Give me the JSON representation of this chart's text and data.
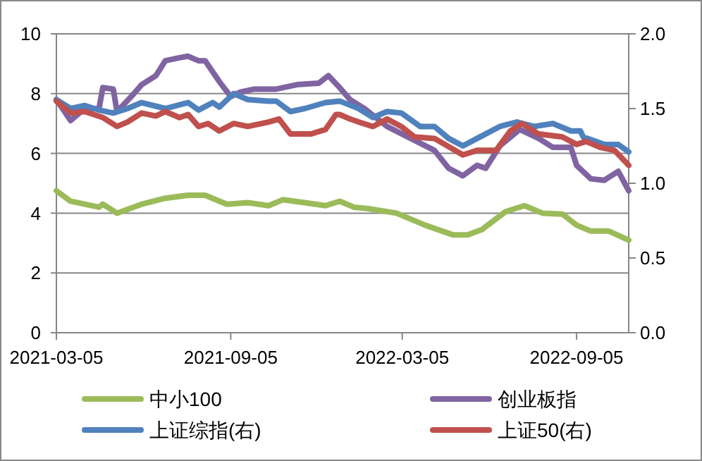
{
  "chart_data": {
    "type": "line",
    "xlim": [
      "2021-03-05",
      "2022-10-30"
    ],
    "xticks": [
      "2021-03-05",
      "2021-09-05",
      "2022-03-05",
      "2022-09-05"
    ],
    "ylim": [
      0,
      10
    ],
    "yticks": [
      0,
      2,
      4,
      6,
      8,
      10
    ],
    "y2lim": [
      0,
      2
    ],
    "y2ticks": [
      {
        "value": 0,
        "label": "0.0"
      },
      {
        "value": 0.5,
        "label": "0.5"
      },
      {
        "value": 1,
        "label": "1.0"
      },
      {
        "value": 1.5,
        "label": "1.5"
      },
      {
        "value": 2,
        "label": "2.0"
      }
    ],
    "grid": "y",
    "legend": "bottom",
    "marker": "none",
    "line_style": "solid",
    "series": [
      {
        "name": "中小100",
        "color": "#9bbb59",
        "x": [
          "2021-03-05",
          "2021-03-20",
          "2021-04-04",
          "2021-04-19",
          "2021-04-23",
          "2021-05-08",
          "2021-06-03",
          "2021-06-28",
          "2021-07-22",
          "2021-08-09",
          "2021-09-01",
          "2021-09-23",
          "2021-10-15",
          "2021-10-30",
          "2021-11-22",
          "2021-12-14",
          "2021-12-29",
          "2022-01-13",
          "2022-01-28",
          "2022-02-27",
          "2022-03-29",
          "2022-04-28",
          "2022-05-13",
          "2022-05-28",
          "2022-06-22",
          "2022-07-12",
          "2022-07-31",
          "2022-08-21",
          "2022-09-05",
          "2022-09-20",
          "2022-10-09",
          "2022-10-30"
        ],
        "values": [
          4.75,
          4.4,
          4.3,
          4.2,
          4.3,
          4.0,
          4.3,
          4.5,
          4.6,
          4.6,
          4.3,
          4.35,
          4.25,
          4.45,
          4.35,
          4.25,
          4.4,
          4.2,
          4.15,
          4.0,
          3.6,
          3.27,
          3.27,
          3.45,
          4.05,
          4.25,
          4.0,
          3.97,
          3.6,
          3.4,
          3.4,
          3.1
        ]
      },
      {
        "name": "创业板指",
        "color": "#8064a2",
        "x": [
          "2021-03-05",
          "2021-03-20",
          "2021-04-04",
          "2021-04-19",
          "2021-04-23",
          "2021-05-04",
          "2021-05-08",
          "2021-05-23",
          "2021-06-03",
          "2021-06-18",
          "2021-06-28",
          "2021-07-13",
          "2021-07-22",
          "2021-08-02",
          "2021-08-09",
          "2021-08-24",
          "2021-09-05",
          "2021-09-15",
          "2021-09-30",
          "2021-10-23",
          "2021-11-14",
          "2021-12-07",
          "2021-12-17",
          "2021-12-29",
          "2022-01-09",
          "2022-01-24",
          "2022-02-17",
          "2022-03-14",
          "2022-04-08",
          "2022-04-23",
          "2022-05-08",
          "2022-05-23",
          "2022-06-01",
          "2022-06-16",
          "2022-07-07",
          "2022-07-27",
          "2022-08-11",
          "2022-08-30",
          "2022-09-05",
          "2022-09-20",
          "2022-10-04",
          "2022-10-19",
          "2022-10-30"
        ],
        "values": [
          7.8,
          7.1,
          7.5,
          7.5,
          8.2,
          8.15,
          7.4,
          7.9,
          8.3,
          8.6,
          9.1,
          9.2,
          9.25,
          9.1,
          9.1,
          8.4,
          7.9,
          8.05,
          8.15,
          8.15,
          8.3,
          8.35,
          8.6,
          8.2,
          7.8,
          7.5,
          6.9,
          6.5,
          6.1,
          5.5,
          5.25,
          5.6,
          5.5,
          6.25,
          6.8,
          6.5,
          6.2,
          6.2,
          5.6,
          5.15,
          5.1,
          5.4,
          4.75
        ]
      },
      {
        "name": "上证综指(右)",
        "color": "#4f81bd",
        "axis": "y2",
        "x": [
          "2021-03-05",
          "2021-03-20",
          "2021-04-04",
          "2021-04-19",
          "2021-05-04",
          "2021-05-19",
          "2021-06-03",
          "2021-06-28",
          "2021-07-22",
          "2021-08-02",
          "2021-08-17",
          "2021-08-24",
          "2021-09-08",
          "2021-09-23",
          "2021-10-15",
          "2021-10-23",
          "2021-11-07",
          "2021-11-22",
          "2021-12-14",
          "2021-12-29",
          "2022-01-06",
          "2022-01-18",
          "2022-02-02",
          "2022-02-17",
          "2022-03-04",
          "2022-03-24",
          "2022-04-08",
          "2022-04-23",
          "2022-05-08",
          "2022-05-23",
          "2022-06-16",
          "2022-07-04",
          "2022-07-22",
          "2022-08-11",
          "2022-08-30",
          "2022-09-09",
          "2022-09-12",
          "2022-10-04",
          "2022-10-19",
          "2022-10-30"
        ],
        "values": [
          1.56,
          1.5,
          1.52,
          1.49,
          1.47,
          1.5,
          1.54,
          1.5,
          1.54,
          1.49,
          1.54,
          1.51,
          1.6,
          1.56,
          1.55,
          1.55,
          1.48,
          1.5,
          1.54,
          1.55,
          1.53,
          1.5,
          1.44,
          1.48,
          1.47,
          1.38,
          1.38,
          1.3,
          1.25,
          1.3,
          1.38,
          1.41,
          1.38,
          1.4,
          1.35,
          1.35,
          1.31,
          1.26,
          1.26,
          1.21
        ]
      },
      {
        "name": "上证50(右)",
        "color": "#c0504d",
        "axis": "y2",
        "x": [
          "2021-03-05",
          "2021-03-20",
          "2021-04-04",
          "2021-04-23",
          "2021-05-08",
          "2021-05-19",
          "2021-06-03",
          "2021-06-18",
          "2021-06-28",
          "2021-07-13",
          "2021-07-22",
          "2021-08-02",
          "2021-08-12",
          "2021-08-24",
          "2021-09-08",
          "2021-09-23",
          "2021-10-15",
          "2021-10-26",
          "2021-11-07",
          "2021-11-29",
          "2021-12-14",
          "2021-12-25",
          "2021-12-29",
          "2022-01-09",
          "2022-01-18",
          "2022-02-02",
          "2022-02-17",
          "2022-03-04",
          "2022-03-18",
          "2022-04-08",
          "2022-05-08",
          "2022-05-23",
          "2022-06-12",
          "2022-06-27",
          "2022-07-09",
          "2022-07-27",
          "2022-08-21",
          "2022-09-05",
          "2022-09-15",
          "2022-09-30",
          "2022-10-15",
          "2022-10-30"
        ],
        "values": [
          1.55,
          1.47,
          1.48,
          1.44,
          1.38,
          1.41,
          1.47,
          1.45,
          1.48,
          1.44,
          1.46,
          1.38,
          1.4,
          1.35,
          1.4,
          1.38,
          1.41,
          1.43,
          1.33,
          1.33,
          1.36,
          1.46,
          1.46,
          1.43,
          1.41,
          1.38,
          1.43,
          1.38,
          1.31,
          1.3,
          1.19,
          1.22,
          1.22,
          1.35,
          1.4,
          1.33,
          1.31,
          1.26,
          1.28,
          1.24,
          1.22,
          1.12
        ]
      }
    ]
  }
}
